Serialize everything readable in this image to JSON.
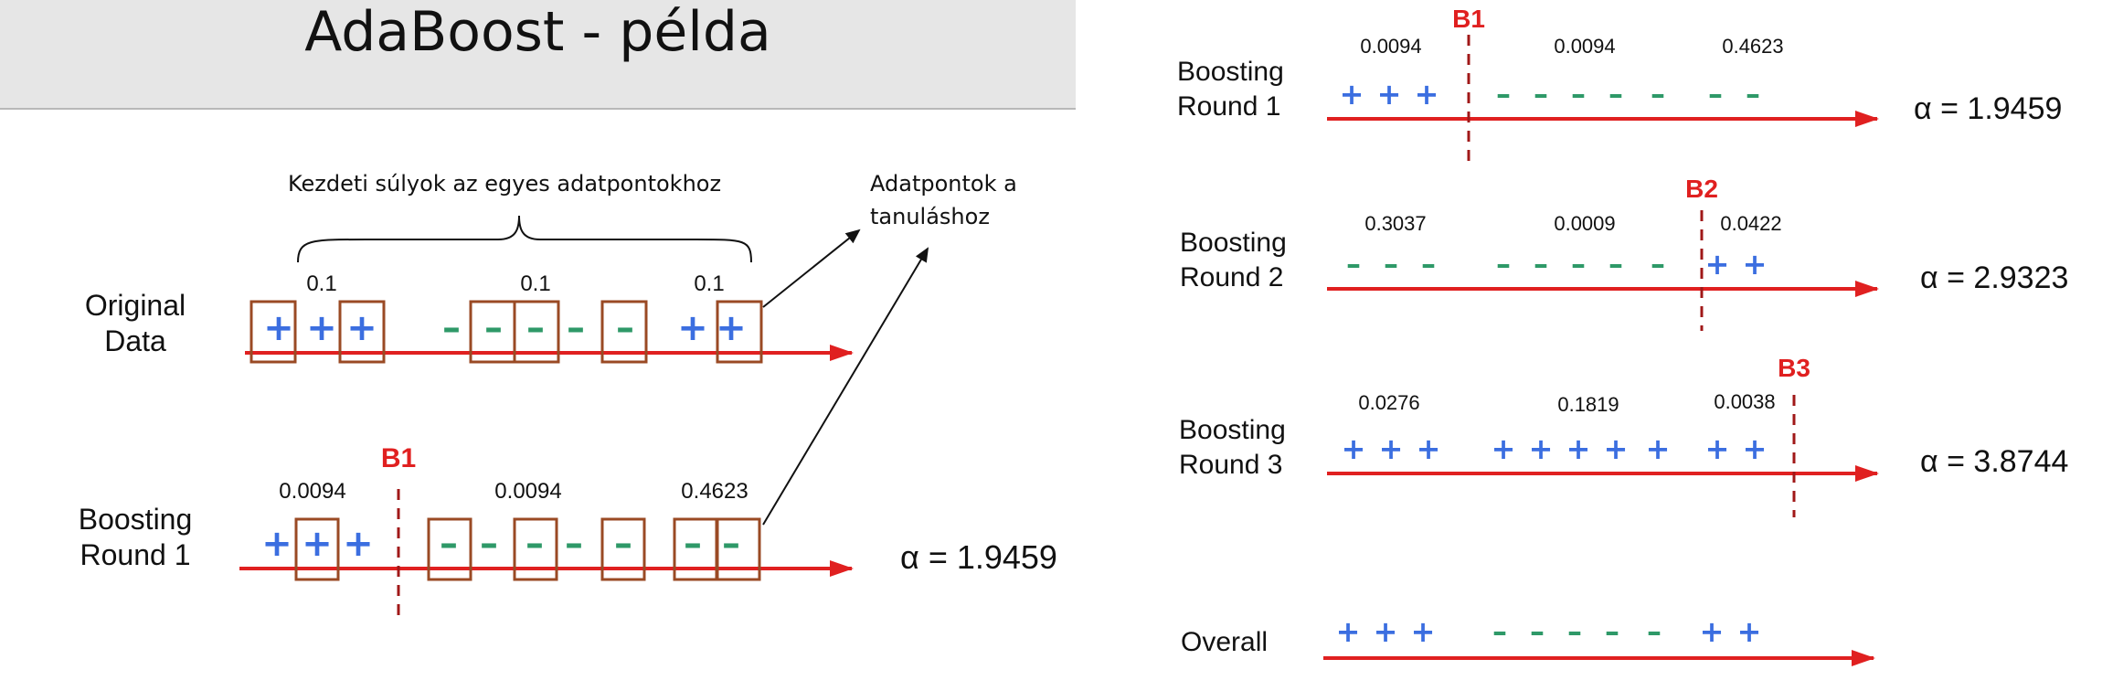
{
  "title": "AdaBoost - példa",
  "colors": {
    "plus": "#3b6ee0",
    "minus": "#2e9968",
    "axis": "#e02020",
    "box": "#9a4a24",
    "boundary": "#a01818",
    "boundary_label": "#e02020"
  },
  "left_panel": {
    "brace_label": "Kezdeti súlyok az egyes adatpontokhoz",
    "note_line1": "Adatpontok a",
    "note_line2": "tanuláshoz",
    "original": {
      "label_line1": "Original",
      "label_line2": "Data",
      "weights": [
        "0.1",
        "0.1",
        "0.1"
      ],
      "points": [
        "+",
        "+",
        "+",
        "-",
        "-",
        "-",
        "-",
        "-",
        "+",
        "+"
      ]
    },
    "round1": {
      "label_line1": "Boosting",
      "label_line2": "Round 1",
      "boundary": "B1",
      "weights": [
        "0.0094",
        "0.0094",
        "0.4623"
      ],
      "alpha": "α = 1.9459",
      "points": [
        "+",
        "+",
        "+",
        "-",
        "-",
        "-",
        "-",
        "-",
        "-",
        "-"
      ]
    }
  },
  "right_panel": {
    "rounds": [
      {
        "label_line1": "Boosting",
        "label_line2": "Round 1",
        "boundary": "B1",
        "weights": [
          "0.0094",
          "0.0094",
          "0.4623"
        ],
        "alpha": "α = 1.9459",
        "points": [
          "+",
          "+",
          "+",
          "-",
          "-",
          "-",
          "-",
          "-",
          "-",
          "-"
        ]
      },
      {
        "label_line1": "Boosting",
        "label_line2": "Round 2",
        "boundary": "B2",
        "weights": [
          "0.3037",
          "0.0009",
          "0.0422"
        ],
        "alpha": "α = 2.9323",
        "points": [
          "-",
          "-",
          "-",
          "-",
          "-",
          "-",
          "-",
          "-",
          "+",
          "+"
        ]
      },
      {
        "label_line1": "Boosting",
        "label_line2": "Round 3",
        "boundary": "B3",
        "weights": [
          "0.0276",
          "0.1819",
          "0.0038"
        ],
        "alpha": "α = 3.8744",
        "points": [
          "+",
          "+",
          "+",
          "+",
          "+",
          "+",
          "+",
          "+",
          "+",
          "+"
        ]
      }
    ],
    "overall": {
      "label": "Overall",
      "points": [
        "+",
        "+",
        "+",
        "-",
        "-",
        "-",
        "-",
        "-",
        "+",
        "+"
      ]
    }
  }
}
